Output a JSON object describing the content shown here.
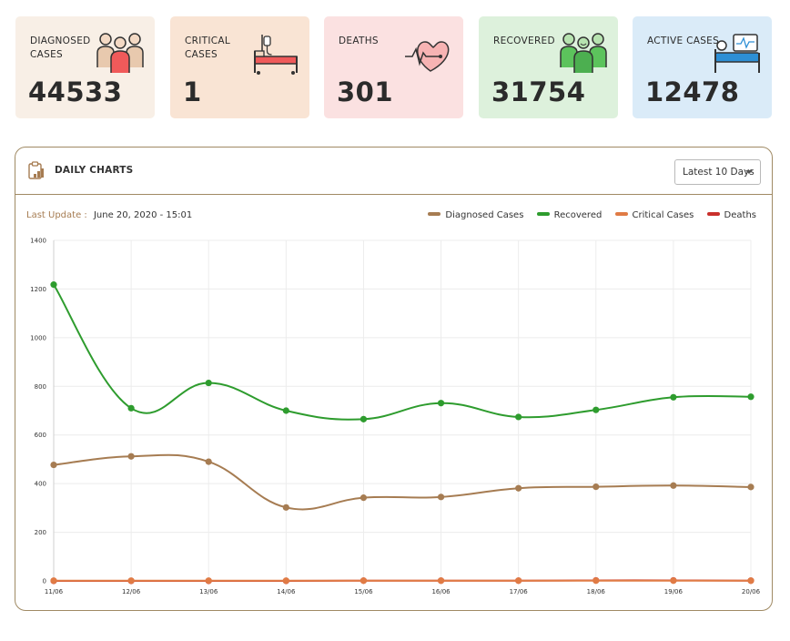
{
  "cards": [
    {
      "label": "Diagnosed Cases",
      "value": "44533",
      "bg": "#f8efe6",
      "icon": "people-group-icon"
    },
    {
      "label": "Critical Cases",
      "value": "1",
      "bg": "#f9e4d4",
      "icon": "hospital-bed-icon"
    },
    {
      "label": "Deaths",
      "value": "301",
      "bg": "#fbe1e1",
      "icon": "heartbeat-icon"
    },
    {
      "label": "Recovered",
      "value": "31754",
      "bg": "#ddf1dc",
      "icon": "recovered-people-icon"
    },
    {
      "label": "Active Cases",
      "value": "12478",
      "bg": "#daebf8",
      "icon": "patient-monitor-icon"
    }
  ],
  "panel": {
    "title": "DAILY CHARTS",
    "range_label": "Latest 10 Days",
    "update_label": "Last Update :",
    "update_value": "June 20, 2020 - 15:01"
  },
  "colors": {
    "diagnosed": "#a67c52",
    "recovered": "#2e9c2e",
    "critical": "#e07b45",
    "deaths": "#c9302c"
  },
  "chart_data": {
    "type": "line",
    "categories": [
      "11/06",
      "12/06",
      "13/06",
      "14/06",
      "15/06",
      "16/06",
      "17/06",
      "18/06",
      "19/06",
      "20/06"
    ],
    "ylim": [
      0,
      1400
    ],
    "yticks": [
      0,
      200,
      400,
      600,
      800,
      1000,
      1200,
      1400
    ],
    "grid": true,
    "legend": "top-right",
    "series": [
      {
        "name": "Diagnosed Cases",
        "values": [
          477,
          512,
          490,
          302,
          342,
          345,
          381,
          387,
          392,
          386
        ]
      },
      {
        "name": "Recovered",
        "values": [
          1218,
          710,
          814,
          700,
          665,
          731,
          674,
          703,
          755,
          757
        ]
      },
      {
        "name": "Critical Cases",
        "values": [
          1,
          1,
          1,
          1,
          1,
          1,
          1,
          1,
          1,
          1
        ]
      },
      {
        "name": "Deaths",
        "values": [
          0,
          0,
          0,
          0,
          1,
          1,
          1,
          2,
          2,
          1
        ]
      }
    ]
  }
}
